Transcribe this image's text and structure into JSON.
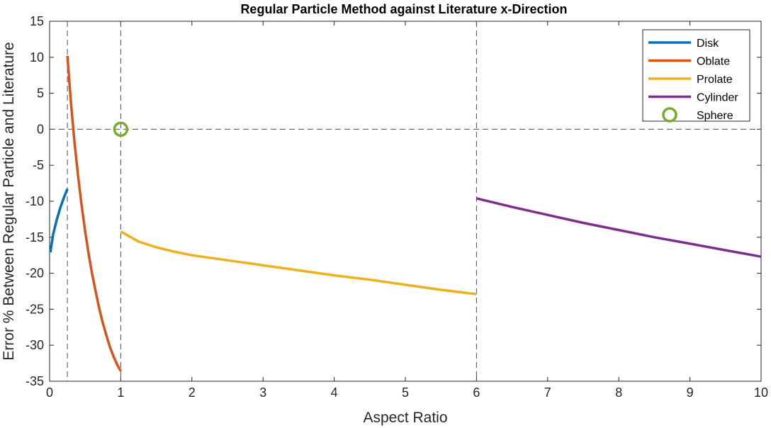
{
  "chart_data": {
    "type": "line",
    "title": "Regular Particle Method against Literature x-Direction",
    "xlabel": "Aspect Ratio",
    "ylabel": "Error % Between Regular Particle and Literature",
    "xlim": [
      0,
      10
    ],
    "ylim": [
      -35,
      15
    ],
    "xticks": [
      0,
      1,
      2,
      3,
      4,
      5,
      6,
      7,
      8,
      9,
      10
    ],
    "yticks": [
      15,
      10,
      5,
      0,
      -5,
      -10,
      -15,
      -20,
      -25,
      -30,
      -35
    ],
    "xtick_labels": [
      "0",
      "1",
      "2",
      "3",
      "4",
      "5",
      "6",
      "7",
      "8",
      "9",
      "10"
    ],
    "ytick_labels": [
      "15",
      "10",
      "5",
      "0",
      "-5",
      "-10",
      "-15",
      "-20",
      "-25",
      "-30",
      "-35"
    ],
    "grid": false,
    "legend_position": "top-right",
    "reference_lines": {
      "vertical_x": [
        0.25,
        1,
        6
      ],
      "horizontal_y": [
        0
      ],
      "style": "dashed",
      "color": "#4d4d4d"
    },
    "series": [
      {
        "name": "Disk",
        "color": "#0072BD",
        "x": [
          0.01,
          0.05,
          0.1,
          0.15,
          0.2,
          0.25
        ],
        "y": [
          -17.1,
          -14.6,
          -12.6,
          -10.9,
          -9.5,
          -8.3
        ]
      },
      {
        "name": "Oblate",
        "color": "#D95319",
        "x": [
          0.25,
          0.3,
          0.35,
          0.4,
          0.45,
          0.5,
          0.55,
          0.6,
          0.65,
          0.7,
          0.75,
          0.8,
          0.85,
          0.9,
          0.95,
          1.0
        ],
        "y": [
          10.2,
          3.7,
          -1.8,
          -6.5,
          -10.6,
          -14.2,
          -17.4,
          -20.2,
          -22.7,
          -25.0,
          -27.0,
          -28.7,
          -30.3,
          -31.6,
          -32.7,
          -33.6
        ]
      },
      {
        "name": "Prolate",
        "color": "#EDB120",
        "x": [
          1.0,
          1.25,
          1.5,
          1.75,
          2.0,
          2.5,
          3.0,
          3.5,
          4.0,
          4.5,
          5.0,
          5.5,
          6.0
        ],
        "y": [
          -14.2,
          -15.6,
          -16.4,
          -17.0,
          -17.5,
          -18.2,
          -18.9,
          -19.6,
          -20.3,
          -20.9,
          -21.6,
          -22.3,
          -22.9
        ]
      },
      {
        "name": "Cylinder",
        "color": "#7E2F8E",
        "x": [
          6.0,
          6.5,
          7.0,
          7.5,
          8.0,
          8.5,
          9.0,
          9.5,
          10.0
        ],
        "y": [
          -9.6,
          -10.8,
          -11.9,
          -13.0,
          -14.0,
          -15.0,
          -15.9,
          -16.8,
          -17.7
        ]
      },
      {
        "name": "Sphere",
        "color": "#77AC30",
        "marker": "circle",
        "x": [
          1
        ],
        "y": [
          0
        ]
      }
    ]
  }
}
